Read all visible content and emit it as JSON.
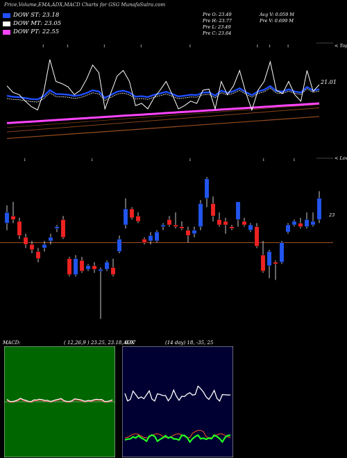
{
  "header": {
    "title": "Price,Volume,EMA,ADX,MACD Charts for GSG MunafaSutra.com"
  },
  "legend": [
    {
      "label": "DOW ST: 23.18",
      "color": "#1f4fff"
    },
    {
      "label": "DOW MT: 23.05",
      "color": "#ffffff"
    },
    {
      "label": "DOW PT: 22.55",
      "color": "#ff44ff"
    }
  ],
  "stats": {
    "open": "Pre  O: 23.49",
    "high": "Pre  H: 23.77",
    "low": "Pre  L: 23.49",
    "close": "Pre  C: 23.64",
    "avg_vol": "Avg V: 0.059 M",
    "pre_vol": "Pre  V: 0.699 M"
  },
  "labels": {
    "tops": "< Tops",
    "lows": "< Lows",
    "price_level": "21.01",
    "ref_level": "23"
  },
  "panels": {
    "macd_title": "MACD:",
    "macd_values": "( 12,26,9 ) 23.25,  23.18,  0.07",
    "adx_title": "ADX",
    "adx_values": "(14  day) 18,  -35,  25"
  },
  "colors": {
    "up": "#2255ee",
    "down": "#ee2222",
    "ema_fast": "#1f4fff",
    "ema_mid": "#ffffff",
    "ema_slow": "#aa5522",
    "ema_long": "#ff44ff",
    "macd_bg": "#006600",
    "adx_bg": "#000033"
  },
  "chart_data": {
    "type": "candlestick",
    "title": "Price,Volume,EMA,ADX,MACD Charts for GSG MunafaSutra.com",
    "reference_price": 23,
    "ylim": [
      21.0,
      25.3
    ],
    "candles": [
      {
        "o": 23.55,
        "h": 24.05,
        "l": 23.35,
        "c": 23.85
      },
      {
        "o": 23.75,
        "h": 24.15,
        "l": 23.55,
        "c": 23.65
      },
      {
        "o": 23.6,
        "h": 23.7,
        "l": 23.1,
        "c": 23.2
      },
      {
        "o": 23.15,
        "h": 23.25,
        "l": 22.85,
        "c": 22.95
      },
      {
        "o": 22.95,
        "h": 23.05,
        "l": 22.7,
        "c": 22.8
      },
      {
        "o": 22.75,
        "h": 22.85,
        "l": 22.45,
        "c": 22.55
      },
      {
        "o": 22.85,
        "h": 23.05,
        "l": 22.75,
        "c": 22.95
      },
      {
        "o": 23.05,
        "h": 23.25,
        "l": 22.95,
        "c": 23.15
      },
      {
        "o": 23.4,
        "h": 23.5,
        "l": 23.3,
        "c": 23.45
      },
      {
        "o": 23.65,
        "h": 23.75,
        "l": 23.1,
        "c": 23.15
      },
      {
        "o": 22.55,
        "h": 22.6,
        "l": 22.05,
        "c": 22.1
      },
      {
        "o": 22.1,
        "h": 22.65,
        "l": 22.05,
        "c": 22.55
      },
      {
        "o": 22.5,
        "h": 22.6,
        "l": 22.15,
        "c": 22.2
      },
      {
        "o": 22.25,
        "h": 22.4,
        "l": 22.2,
        "c": 22.35
      },
      {
        "o": 22.35,
        "h": 22.45,
        "l": 22.15,
        "c": 22.25
      },
      {
        "o": 22.2,
        "h": 22.3,
        "l": 20.85,
        "c": 22.25
      },
      {
        "o": 22.25,
        "h": 22.5,
        "l": 22.2,
        "c": 22.45
      },
      {
        "o": 22.3,
        "h": 22.55,
        "l": 22.05,
        "c": 22.1
      },
      {
        "o": 22.75,
        "h": 23.2,
        "l": 22.7,
        "c": 23.1
      },
      {
        "o": 23.5,
        "h": 24.25,
        "l": 23.4,
        "c": 23.95
      },
      {
        "o": 23.95,
        "h": 24.0,
        "l": 23.65,
        "c": 23.7
      },
      {
        "o": 23.75,
        "h": 23.85,
        "l": 23.55,
        "c": 23.6
      },
      {
        "o": 23.1,
        "h": 23.15,
        "l": 22.95,
        "c": 23.0
      },
      {
        "o": 23.05,
        "h": 23.3,
        "l": 22.95,
        "c": 23.2
      },
      {
        "o": 23.05,
        "h": 23.35,
        "l": 23.0,
        "c": 23.3
      },
      {
        "o": 23.45,
        "h": 23.55,
        "l": 23.35,
        "c": 23.5
      },
      {
        "o": 23.65,
        "h": 23.75,
        "l": 23.45,
        "c": 23.5
      },
      {
        "o": 23.5,
        "h": 23.85,
        "l": 23.4,
        "c": 23.45
      },
      {
        "o": 23.45,
        "h": 23.6,
        "l": 23.35,
        "c": 23.4
      },
      {
        "o": 23.35,
        "h": 23.45,
        "l": 23.0,
        "c": 23.2
      },
      {
        "o": 23.25,
        "h": 23.45,
        "l": 23.15,
        "c": 23.35
      },
      {
        "o": 23.45,
        "h": 24.2,
        "l": 23.35,
        "c": 24.1
      },
      {
        "o": 24.25,
        "h": 24.85,
        "l": 24.0,
        "c": 24.8
      },
      {
        "o": 24.1,
        "h": 24.3,
        "l": 23.6,
        "c": 23.75
      },
      {
        "o": 23.65,
        "h": 23.85,
        "l": 23.45,
        "c": 23.5
      },
      {
        "o": 23.6,
        "h": 23.7,
        "l": 23.25,
        "c": 23.5
      },
      {
        "o": 23.45,
        "h": 23.5,
        "l": 23.35,
        "c": 23.4
      },
      {
        "o": 23.65,
        "h": 24.15,
        "l": 23.45,
        "c": 24.15
      },
      {
        "o": 23.6,
        "h": 23.7,
        "l": 23.45,
        "c": 23.5
      },
      {
        "o": 23.35,
        "h": 23.55,
        "l": 23.3,
        "c": 23.5
      },
      {
        "o": 23.45,
        "h": 23.55,
        "l": 22.85,
        "c": 22.9
      },
      {
        "o": 22.65,
        "h": 23.05,
        "l": 22.15,
        "c": 22.2
      },
      {
        "o": 22.35,
        "h": 22.8,
        "l": 22.0,
        "c": 22.75
      },
      {
        "o": 22.45,
        "h": 22.5,
        "l": 21.95,
        "c": 22.4
      },
      {
        "o": 22.45,
        "h": 23.05,
        "l": 22.4,
        "c": 23.0
      },
      {
        "o": 23.3,
        "h": 23.55,
        "l": 23.25,
        "c": 23.5
      },
      {
        "o": 23.5,
        "h": 23.65,
        "l": 23.45,
        "c": 23.6
      },
      {
        "o": 23.55,
        "h": 23.7,
        "l": 23.4,
        "c": 23.45
      },
      {
        "o": 23.45,
        "h": 23.85,
        "l": 23.4,
        "c": 23.65
      },
      {
        "o": 23.5,
        "h": 23.85,
        "l": 23.45,
        "c": 23.6
      },
      {
        "o": 23.65,
        "h": 24.45,
        "l": 23.55,
        "c": 24.25
      }
    ],
    "close_series": [
      66,
      60,
      58,
      52,
      47,
      44,
      60,
      90,
      70,
      68,
      65,
      58,
      62,
      72,
      85,
      78,
      45,
      60,
      75,
      80,
      70,
      48,
      50,
      45,
      55,
      62,
      70,
      58,
      45,
      48,
      52,
      50,
      62,
      63,
      45,
      70,
      58,
      66,
      80,
      60,
      44,
      62,
      70,
      88,
      62,
      59,
      70,
      58,
      52,
      80,
      61,
      67
    ],
    "ema_series": [
      {
        "name": "DOW ST",
        "color": "#1f4fff",
        "start": 55,
        "end": 62
      },
      {
        "name": "DOW MT",
        "color": "#ffffff",
        "start": 52,
        "end": 60
      },
      {
        "name": "DOW PT",
        "color": "#ff44ff",
        "start": 32,
        "end": 50
      }
    ]
  }
}
